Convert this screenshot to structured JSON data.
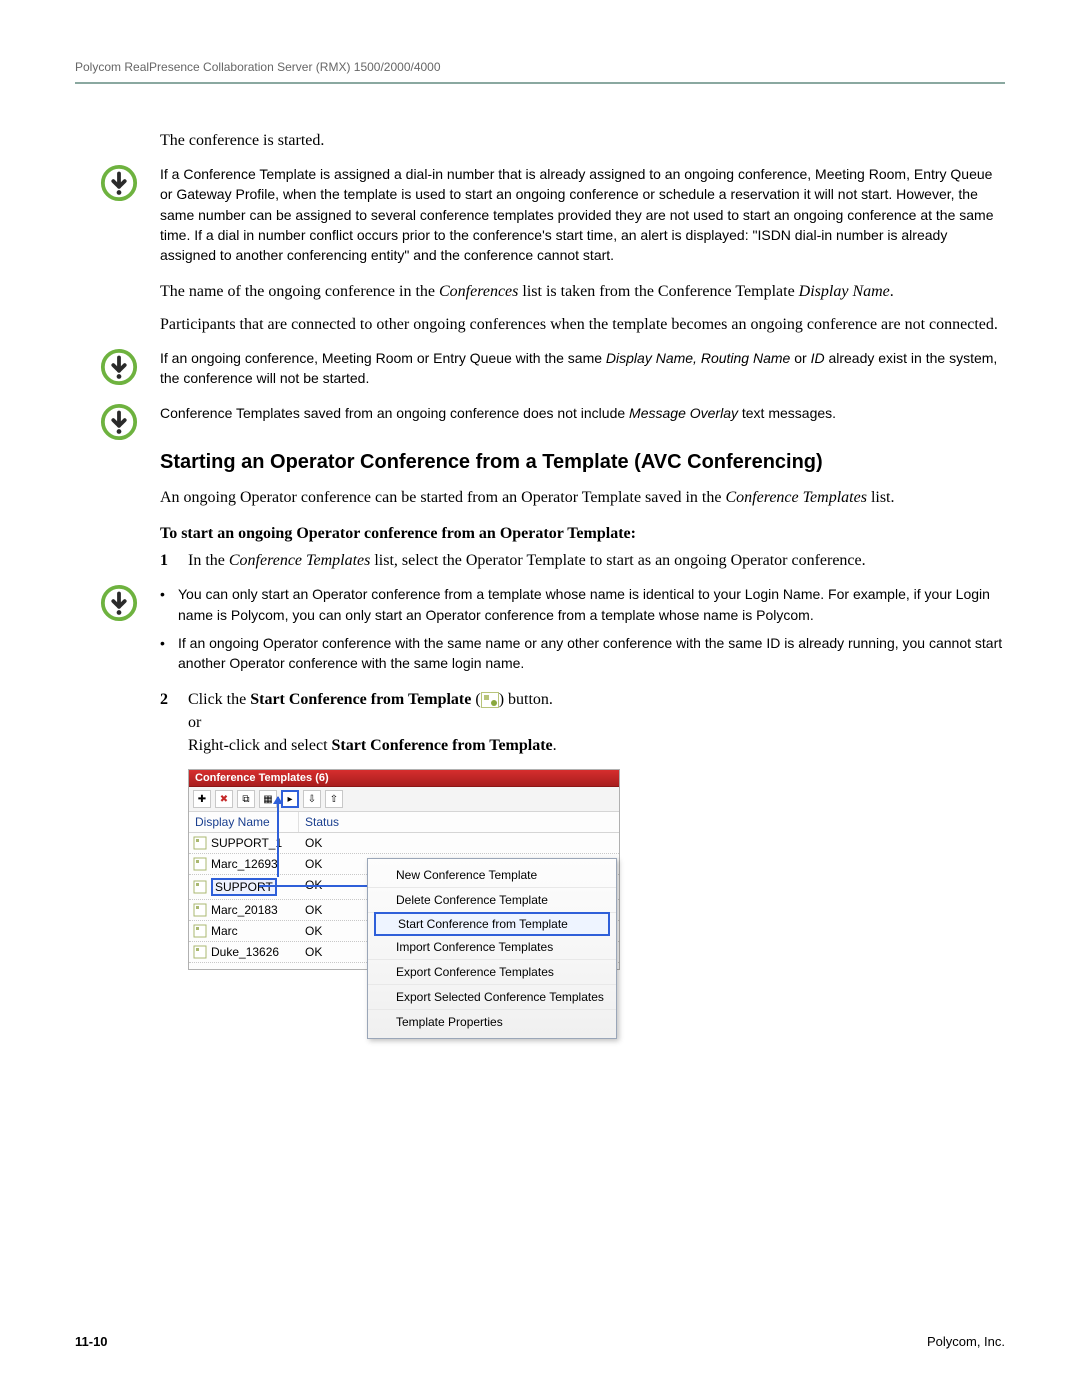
{
  "header": "Polycom RealPresence Collaboration Server (RMX) 1500/2000/4000",
  "p1": "The conference is started.",
  "note1": "If a Conference Template is assigned a dial-in number that is already assigned to an ongoing conference, Meeting Room, Entry Queue or Gateway Profile, when the template is used to start an ongoing conference or schedule a reservation it will not start. However, the same number can be assigned to several conference templates provided they are not used to start an ongoing conference at the same time. If a dial in number conflict occurs prior to the conference's start time, an alert is displayed: \"ISDN dial-in number is already assigned to another conferencing entity\" and the conference cannot start.",
  "p2_a": "The name of the ongoing conference in the ",
  "p2_b": "Conferences",
  "p2_c": " list is taken from the Conference Template ",
  "p2_d": "Display Name",
  "p2_e": ".",
  "p3": "Participants that are connected to other ongoing conferences when the template becomes an ongoing conference are not connected.",
  "note2_a": "If an ongoing conference, Meeting Room or Entry Queue with the same ",
  "note2_b": "Display Name, Routing Name",
  "note2_c": " or ",
  "note2_d": "ID",
  "note2_e": " already exist in the system, the conference will not be started.",
  "note3_a": "Conference Templates saved from an ongoing conference does not include ",
  "note3_b": "Message Overlay",
  "note3_c": " text messages.",
  "heading": "Starting an Operator Conference from a Template (AVC Conferencing)",
  "p4_a": "An ongoing Operator conference can be started from an Operator Template saved in the ",
  "p4_b": "Conference Templates",
  "p4_c": " list.",
  "inst": "To start an ongoing Operator conference from an Operator Template:",
  "s1_a": "In the ",
  "s1_b": "Conference Templates",
  "s1_c": " list, select the Operator Template to start as an ongoing Operator conference.",
  "b1": "You can only start an Operator conference from a template whose name is identical to your Login Name. For example, if your Login name is Polycom, you can only start an Operator conference from a template whose name is Polycom.",
  "b2": "If an ongoing Operator conference with the same name or any other conference with the same ID is already running, you cannot start another Operator conference with the same login name.",
  "s2_a": "Click the ",
  "s2_b": "Start Conference from Template",
  "s2_c": " (",
  "s2_d": ") button.",
  "s2_or": "or",
  "s2_e": "Right-click and select ",
  "s2_f": "Start Conference from Template",
  "s2_g": ".",
  "ss": {
    "title": "Conference Templates (6)",
    "col_name": "Display Name",
    "col_status": "Status",
    "rows": [
      {
        "name": "SUPPORT_1",
        "status": "OK"
      },
      {
        "name": "Marc_12693",
        "status": "OK"
      },
      {
        "name": "SUPPORT",
        "status": "OK",
        "sel": true
      },
      {
        "name": "Marc_20183",
        "status": "OK"
      },
      {
        "name": "Marc",
        "status": "OK"
      },
      {
        "name": "Duke_13626",
        "status": "OK"
      }
    ],
    "menu": [
      "New Conference Template",
      "Delete Conference Template",
      "Start Conference from Template",
      "Import Conference Templates",
      "Export Conference Templates",
      "Export Selected Conference Templates",
      "Template Properties"
    ]
  },
  "footer_page": "11-10",
  "footer_right": "Polycom, Inc."
}
